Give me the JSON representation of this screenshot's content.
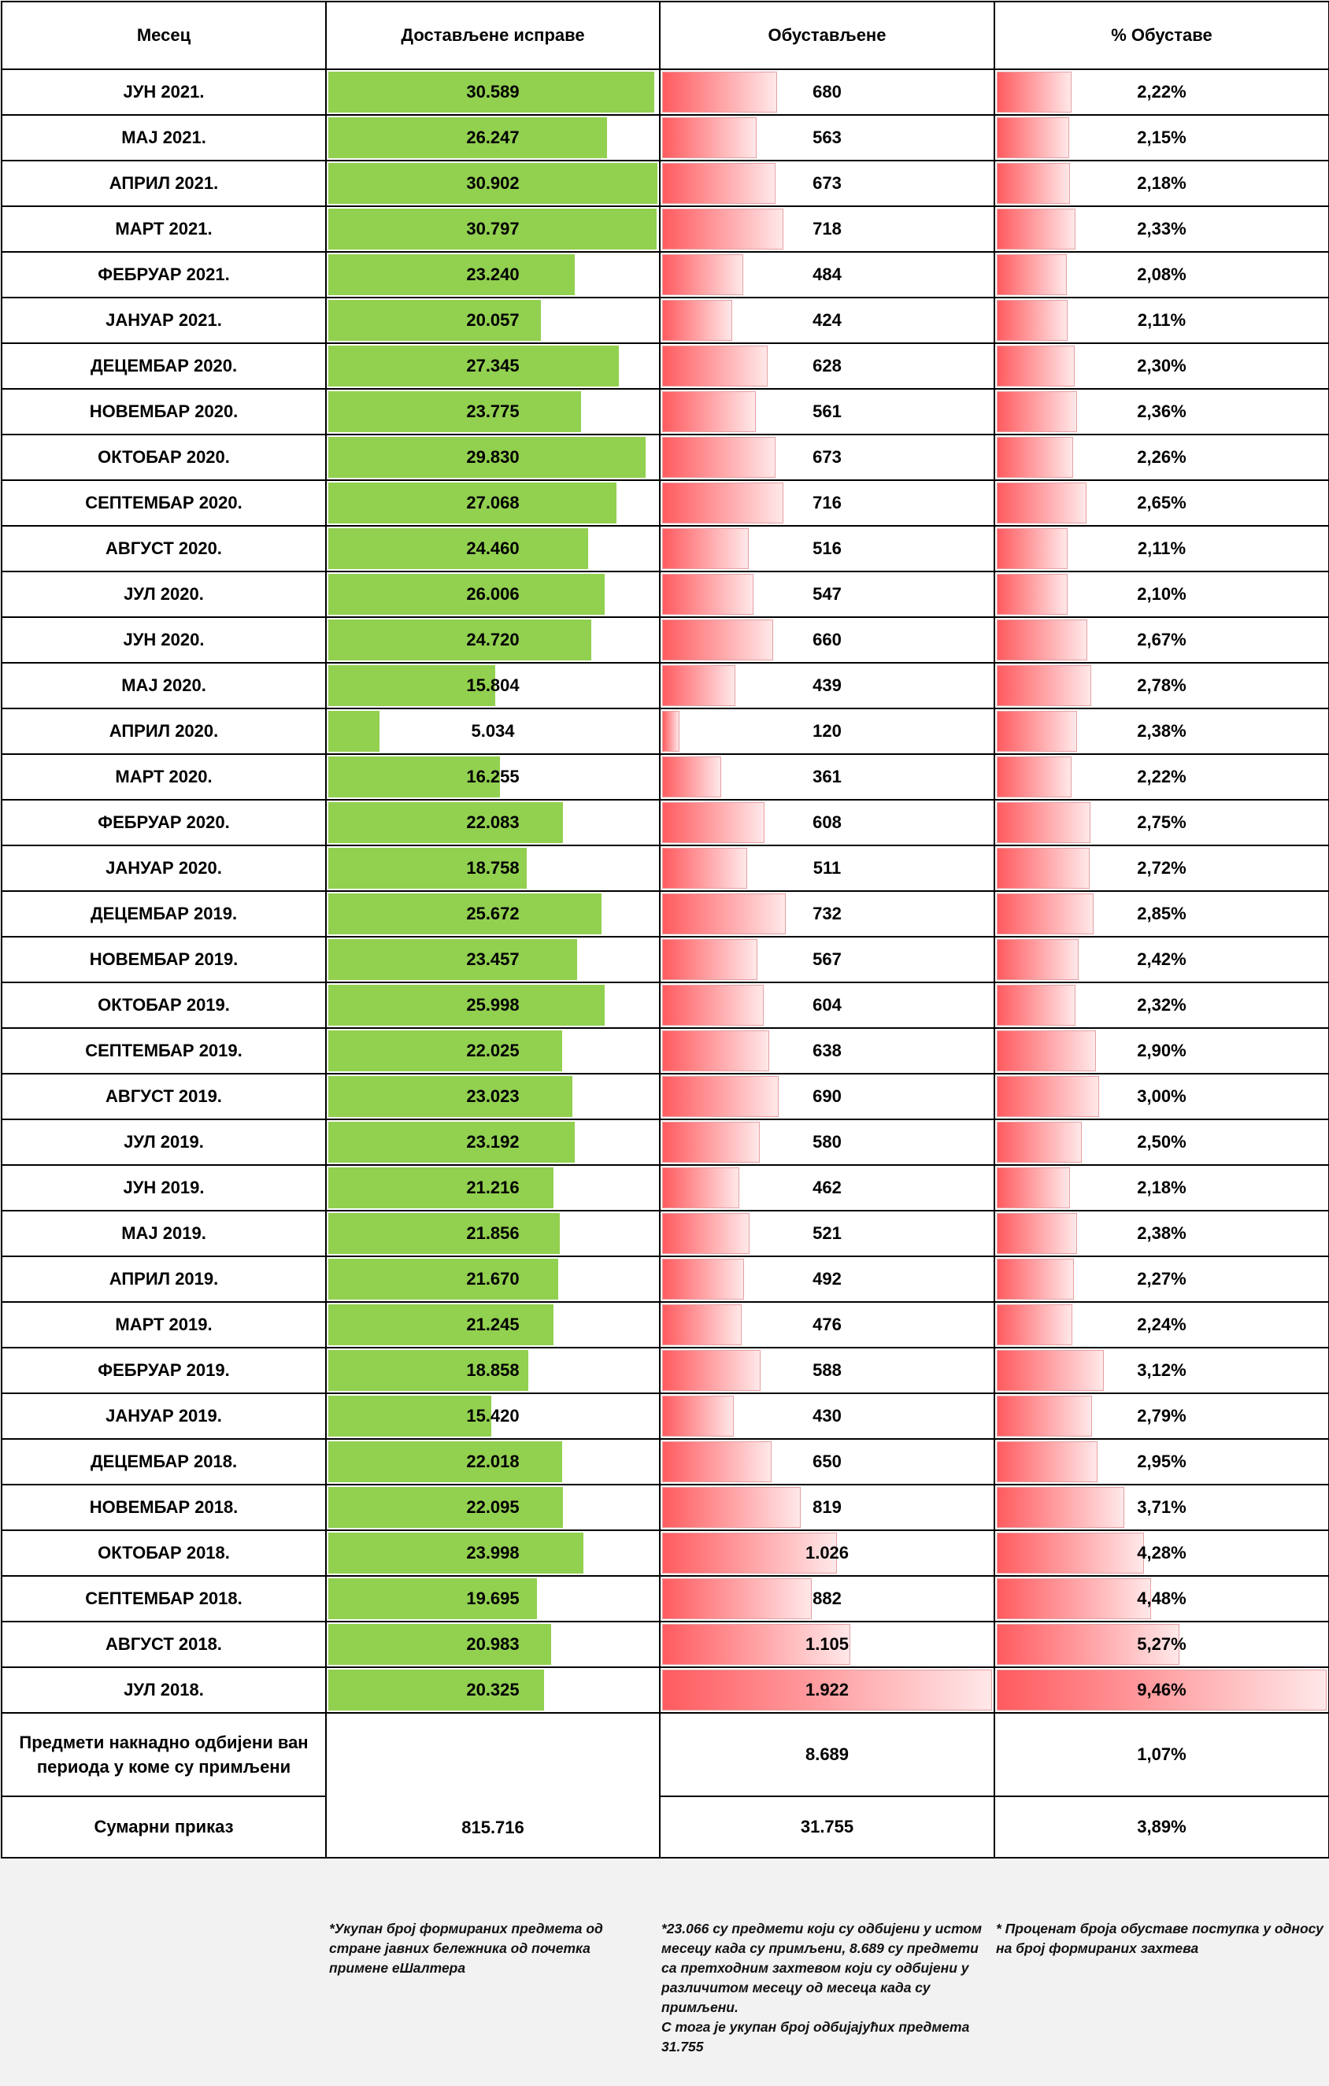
{
  "colors": {
    "green_bar": "#92d050",
    "red_bar": "#ff5b5f"
  },
  "headers": {
    "month": "Месец",
    "delivered": "Достављене исправе",
    "suspended": "Обустављене",
    "percent": "% Обуставе"
  },
  "rows": [
    {
      "month": "ЈУН 2021.",
      "delivered": "30.589",
      "suspended": "680",
      "percent": "2,22%",
      "delivered_value": 30589,
      "suspended_value": 680,
      "percent_value": 2.22
    },
    {
      "month": "МАЈ 2021.",
      "delivered": "26.247",
      "suspended": "563",
      "percent": "2,15%",
      "delivered_value": 26247,
      "suspended_value": 563,
      "percent_value": 2.15
    },
    {
      "month": "АПРИЛ 2021.",
      "delivered": "30.902",
      "suspended": "673",
      "percent": "2,18%",
      "delivered_value": 30902,
      "suspended_value": 673,
      "percent_value": 2.18
    },
    {
      "month": "МАРТ 2021.",
      "delivered": "30.797",
      "suspended": "718",
      "percent": "2,33%",
      "delivered_value": 30797,
      "suspended_value": 718,
      "percent_value": 2.33
    },
    {
      "month": "ФЕБРУАР 2021.",
      "delivered": "23.240",
      "suspended": "484",
      "percent": "2,08%",
      "delivered_value": 23240,
      "suspended_value": 484,
      "percent_value": 2.08
    },
    {
      "month": "ЈАНУАР 2021.",
      "delivered": "20.057",
      "suspended": "424",
      "percent": "2,11%",
      "delivered_value": 20057,
      "suspended_value": 424,
      "percent_value": 2.11
    },
    {
      "month": "ДЕЦЕМБАР 2020.",
      "delivered": "27.345",
      "suspended": "628",
      "percent": "2,30%",
      "delivered_value": 27345,
      "suspended_value": 628,
      "percent_value": 2.3
    },
    {
      "month": "НОВЕМБАР 2020.",
      "delivered": "23.775",
      "suspended": "561",
      "percent": "2,36%",
      "delivered_value": 23775,
      "suspended_value": 561,
      "percent_value": 2.36
    },
    {
      "month": "ОКТОБАР 2020.",
      "delivered": "29.830",
      "suspended": "673",
      "percent": "2,26%",
      "delivered_value": 29830,
      "suspended_value": 673,
      "percent_value": 2.26
    },
    {
      "month": "СЕПТЕМБАР 2020.",
      "delivered": "27.068",
      "suspended": "716",
      "percent": "2,65%",
      "delivered_value": 27068,
      "suspended_value": 716,
      "percent_value": 2.65
    },
    {
      "month": "АВГУСТ 2020.",
      "delivered": "24.460",
      "suspended": "516",
      "percent": "2,11%",
      "delivered_value": 24460,
      "suspended_value": 516,
      "percent_value": 2.11
    },
    {
      "month": "ЈУЛ 2020.",
      "delivered": "26.006",
      "suspended": "547",
      "percent": "2,10%",
      "delivered_value": 26006,
      "suspended_value": 547,
      "percent_value": 2.1
    },
    {
      "month": "ЈУН 2020.",
      "delivered": "24.720",
      "suspended": "660",
      "percent": "2,67%",
      "delivered_value": 24720,
      "suspended_value": 660,
      "percent_value": 2.67
    },
    {
      "month": "МАЈ 2020.",
      "delivered": "15.804",
      "suspended": "439",
      "percent": "2,78%",
      "delivered_value": 15804,
      "suspended_value": 439,
      "percent_value": 2.78
    },
    {
      "month": "АПРИЛ 2020.",
      "delivered": "5.034",
      "suspended": "120",
      "percent": "2,38%",
      "delivered_value": 5034,
      "suspended_value": 120,
      "percent_value": 2.38
    },
    {
      "month": "МАРТ 2020.",
      "delivered": "16.255",
      "suspended": "361",
      "percent": "2,22%",
      "delivered_value": 16255,
      "suspended_value": 361,
      "percent_value": 2.22
    },
    {
      "month": "ФЕБРУАР 2020.",
      "delivered": "22.083",
      "suspended": "608",
      "percent": "2,75%",
      "delivered_value": 22083,
      "suspended_value": 608,
      "percent_value": 2.75
    },
    {
      "month": "ЈАНУАР 2020.",
      "delivered": "18.758",
      "suspended": "511",
      "percent": "2,72%",
      "delivered_value": 18758,
      "suspended_value": 511,
      "percent_value": 2.72
    },
    {
      "month": "ДЕЦЕМБАР 2019.",
      "delivered": "25.672",
      "suspended": "732",
      "percent": "2,85%",
      "delivered_value": 25672,
      "suspended_value": 732,
      "percent_value": 2.85
    },
    {
      "month": "НОВЕМБАР 2019.",
      "delivered": "23.457",
      "suspended": "567",
      "percent": "2,42%",
      "delivered_value": 23457,
      "suspended_value": 567,
      "percent_value": 2.42
    },
    {
      "month": "ОКТОБАР 2019.",
      "delivered": "25.998",
      "suspended": "604",
      "percent": "2,32%",
      "delivered_value": 25998,
      "suspended_value": 604,
      "percent_value": 2.32
    },
    {
      "month": "СЕПТЕМБАР 2019.",
      "delivered": "22.025",
      "suspended": "638",
      "percent": "2,90%",
      "delivered_value": 22025,
      "suspended_value": 638,
      "percent_value": 2.9
    },
    {
      "month": "АВГУСТ 2019.",
      "delivered": "23.023",
      "suspended": "690",
      "percent": "3,00%",
      "delivered_value": 23023,
      "suspended_value": 690,
      "percent_value": 3.0
    },
    {
      "month": "ЈУЛ 2019.",
      "delivered": "23.192",
      "suspended": "580",
      "percent": "2,50%",
      "delivered_value": 23192,
      "suspended_value": 580,
      "percent_value": 2.5
    },
    {
      "month": "ЈУН 2019.",
      "delivered": "21.216",
      "suspended": "462",
      "percent": "2,18%",
      "delivered_value": 21216,
      "suspended_value": 462,
      "percent_value": 2.18
    },
    {
      "month": "МАЈ 2019.",
      "delivered": "21.856",
      "suspended": "521",
      "percent": "2,38%",
      "delivered_value": 21856,
      "suspended_value": 521,
      "percent_value": 2.38
    },
    {
      "month": "АПРИЛ 2019.",
      "delivered": "21.670",
      "suspended": "492",
      "percent": "2,27%",
      "delivered_value": 21670,
      "suspended_value": 492,
      "percent_value": 2.27
    },
    {
      "month": "МАРТ 2019.",
      "delivered": "21.245",
      "suspended": "476",
      "percent": "2,24%",
      "delivered_value": 21245,
      "suspended_value": 476,
      "percent_value": 2.24
    },
    {
      "month": "ФЕБРУАР 2019.",
      "delivered": "18.858",
      "suspended": "588",
      "percent": "3,12%",
      "delivered_value": 18858,
      "suspended_value": 588,
      "percent_value": 3.12
    },
    {
      "month": "ЈАНУАР 2019.",
      "delivered": "15.420",
      "suspended": "430",
      "percent": "2,79%",
      "delivered_value": 15420,
      "suspended_value": 430,
      "percent_value": 2.79
    },
    {
      "month": "ДЕЦЕМБАР 2018.",
      "delivered": "22.018",
      "suspended": "650",
      "percent": "2,95%",
      "delivered_value": 22018,
      "suspended_value": 650,
      "percent_value": 2.95
    },
    {
      "month": "НОВЕМБАР 2018.",
      "delivered": "22.095",
      "suspended": "819",
      "percent": "3,71%",
      "delivered_value": 22095,
      "suspended_value": 819,
      "percent_value": 3.71
    },
    {
      "month": "ОКТОБАР 2018.",
      "delivered": "23.998",
      "suspended": "1.026",
      "percent": "4,28%",
      "delivered_value": 23998,
      "suspended_value": 1026,
      "percent_value": 4.28
    },
    {
      "month": "СЕПТЕМБАР 2018.",
      "delivered": "19.695",
      "suspended": "882",
      "percent": "4,48%",
      "delivered_value": 19695,
      "suspended_value": 882,
      "percent_value": 4.48
    },
    {
      "month": "АВГУСТ 2018.",
      "delivered": "20.983",
      "suspended": "1.105",
      "percent": "5,27%",
      "delivered_value": 20983,
      "suspended_value": 1105,
      "percent_value": 5.27
    },
    {
      "month": "ЈУЛ 2018.",
      "delivered": "20.325",
      "suspended": "1.922",
      "percent": "9,46%",
      "delivered_value": 20325,
      "suspended_value": 1922,
      "percent_value": 9.46
    }
  ],
  "extra_row": {
    "label": "Предмети накнадно одбијени ван периода у коме су примљени",
    "suspended": "8.689",
    "percent": "1,07%"
  },
  "summary_row": {
    "label": "Сумарни приказ",
    "delivered": "815.716",
    "suspended": "31.755",
    "percent": "3,89%"
  },
  "notes": {
    "delivered": "*Укупан број формираних предмета од стране јавних бележника од почетка примене еШалтера",
    "suspended": "*23.066 су предмети који су одбијени у истом месецу када су примљени, 8.689 су предмети са претходним захтевом који су одбијени у различитом месецу од месеца када су примљени.\nС тога је укупан број одбијајућих предмета 31.755",
    "percent": "* Проценат броја обуставе поступка у односу на број формираних захтева"
  }
}
